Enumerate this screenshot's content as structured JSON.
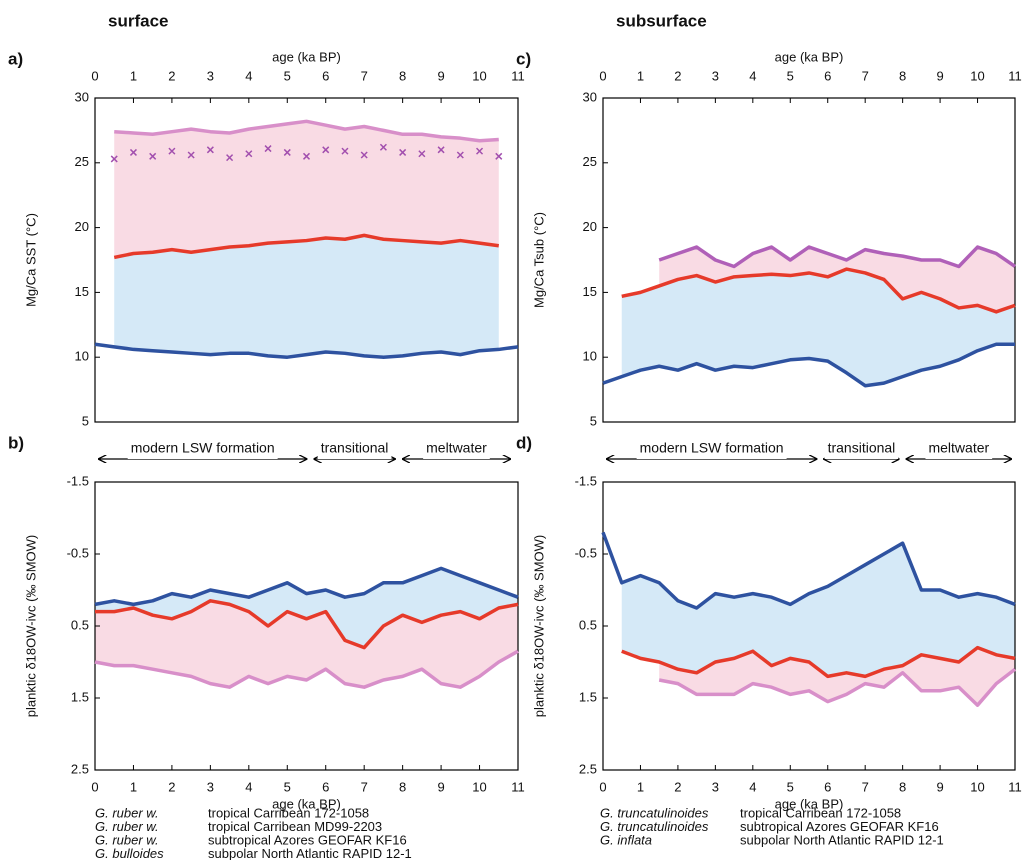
{
  "figure": {
    "headings": [
      "surface",
      "subsurface"
    ]
  },
  "chart_data": [
    {
      "type": "line",
      "panel_label": "a)",
      "xlabel": "age (ka BP)",
      "x_axis_position": "top",
      "ylabel": "Mg/Ca SST (°C)",
      "x": [
        0,
        0.5,
        1,
        1.5,
        2,
        2.5,
        3,
        3.5,
        4,
        4.5,
        5,
        5.5,
        6,
        6.5,
        7,
        7.5,
        8,
        8.5,
        9,
        9.5,
        10,
        10.5,
        11
      ],
      "xlim": [
        0,
        11
      ],
      "xticks": [
        0,
        1,
        2,
        3,
        4,
        5,
        6,
        7,
        8,
        9,
        10,
        11
      ],
      "ylim": [
        5,
        30
      ],
      "yticks": [
        5,
        10,
        15,
        20,
        25,
        30
      ],
      "series": [
        {
          "color": "#d88fc9",
          "style": "line",
          "values": [
            null,
            27.4,
            27.3,
            27.2,
            27.4,
            27.6,
            27.4,
            27.3,
            27.6,
            27.8,
            28.0,
            28.2,
            27.9,
            27.6,
            27.8,
            27.5,
            27.2,
            27.2,
            27.0,
            26.9,
            26.7,
            26.8,
            null
          ]
        },
        {
          "color": "#a24fae",
          "style": "points",
          "values": [
            null,
            25.3,
            25.8,
            25.5,
            25.9,
            25.6,
            26.0,
            25.4,
            25.7,
            26.1,
            25.8,
            25.5,
            26.0,
            25.9,
            25.6,
            26.2,
            25.8,
            25.7,
            26.0,
            25.6,
            25.9,
            25.5,
            null
          ]
        },
        {
          "color": "#e63a2a",
          "style": "line",
          "values": [
            null,
            17.7,
            18.0,
            18.1,
            18.3,
            18.1,
            18.3,
            18.5,
            18.6,
            18.8,
            18.9,
            19.0,
            19.2,
            19.1,
            19.4,
            19.1,
            19.0,
            18.9,
            18.8,
            19.0,
            18.8,
            18.6,
            null
          ]
        },
        {
          "color": "#2e52a0",
          "style": "line",
          "values": [
            11.0,
            10.8,
            10.6,
            10.5,
            10.4,
            10.3,
            10.2,
            10.3,
            10.3,
            10.1,
            10.0,
            10.2,
            10.4,
            10.3,
            10.1,
            10.0,
            10.1,
            10.3,
            10.4,
            10.2,
            10.5,
            10.6,
            10.8
          ]
        }
      ],
      "bands": [
        {
          "between": [
            0,
            2
          ],
          "color": "#f9dbe4"
        },
        {
          "between": [
            2,
            3
          ],
          "color": "#d5e9f7"
        }
      ]
    },
    {
      "type": "line",
      "panel_label": "b)",
      "xlabel": "age (ka BP)",
      "x_axis_position": "bottom",
      "ylabel": "planktic δ18OW-ivc (‰ SMOW)",
      "x": [
        0,
        0.5,
        1,
        1.5,
        2,
        2.5,
        3,
        3.5,
        4,
        4.5,
        5,
        5.5,
        6,
        6.5,
        7,
        7.5,
        8,
        8.5,
        9,
        9.5,
        10,
        10.5,
        11
      ],
      "xlim": [
        0,
        11
      ],
      "xticks": [
        0,
        1,
        2,
        3,
        4,
        5,
        6,
        7,
        8,
        9,
        10,
        11
      ],
      "ylim": [
        2.5,
        -1.5
      ],
      "yticks": [
        -1.5,
        -0.5,
        0.5,
        1.5,
        2.5
      ],
      "regimes": [
        {
          "text": "modern LSW formation",
          "x0": 0.1,
          "x1": 5.5
        },
        {
          "text": "transitional",
          "x0": 5.7,
          "x1": 7.8
        },
        {
          "text": "meltwater",
          "x0": 8.0,
          "x1": 10.8
        }
      ],
      "series": [
        {
          "color": "#d88fc9",
          "style": "line",
          "values": [
            1.0,
            1.05,
            1.05,
            1.1,
            1.15,
            1.2,
            1.3,
            1.35,
            1.2,
            1.3,
            1.2,
            1.25,
            1.1,
            1.3,
            1.35,
            1.25,
            1.2,
            1.1,
            1.3,
            1.35,
            1.2,
            1.0,
            0.85
          ]
        },
        {
          "color": "#e63a2a",
          "style": "line",
          "values": [
            0.3,
            0.3,
            0.25,
            0.35,
            0.4,
            0.3,
            0.15,
            0.2,
            0.3,
            0.5,
            0.3,
            0.4,
            0.3,
            0.7,
            0.8,
            0.5,
            0.35,
            0.45,
            0.35,
            0.3,
            0.4,
            0.25,
            0.2
          ]
        },
        {
          "color": "#2e52a0",
          "style": "line",
          "values": [
            0.2,
            0.15,
            0.2,
            0.15,
            0.05,
            0.1,
            0.0,
            0.05,
            0.1,
            0.0,
            -0.1,
            0.05,
            0.0,
            0.1,
            0.05,
            -0.1,
            -0.1,
            -0.2,
            -0.3,
            -0.2,
            -0.1,
            0.0,
            0.1
          ]
        }
      ],
      "bands": [
        {
          "between": [
            0,
            1
          ],
          "color": "#f9dbe4"
        },
        {
          "between": [
            1,
            2
          ],
          "color": "#d5e9f7"
        }
      ]
    },
    {
      "type": "line",
      "panel_label": "c)",
      "xlabel": "age (ka BP)",
      "x_axis_position": "top",
      "ylabel": "Mg/Ca Tsub (°C)",
      "x": [
        0,
        0.5,
        1,
        1.5,
        2,
        2.5,
        3,
        3.5,
        4,
        4.5,
        5,
        5.5,
        6,
        6.5,
        7,
        7.5,
        8,
        8.5,
        9,
        9.5,
        10,
        10.5,
        11
      ],
      "xlim": [
        0,
        11
      ],
      "xticks": [
        0,
        1,
        2,
        3,
        4,
        5,
        6,
        7,
        8,
        9,
        10,
        11
      ],
      "ylim": [
        5,
        30
      ],
      "yticks": [
        5,
        10,
        15,
        20,
        25,
        30
      ],
      "series": [
        {
          "color": "#b060b8",
          "style": "line",
          "values": [
            null,
            null,
            null,
            17.5,
            18.0,
            18.5,
            17.5,
            17.0,
            18.0,
            18.5,
            17.5,
            18.5,
            18.0,
            17.5,
            18.3,
            18.0,
            17.8,
            17.5,
            17.5,
            17.0,
            18.5,
            18.0,
            17.0
          ]
        },
        {
          "color": "#e63a2a",
          "style": "line",
          "values": [
            null,
            14.7,
            15.0,
            15.5,
            16.0,
            16.3,
            15.8,
            16.2,
            16.3,
            16.4,
            16.3,
            16.5,
            16.2,
            16.8,
            16.5,
            16.0,
            14.5,
            15.0,
            14.5,
            13.8,
            14.0,
            13.5,
            14.0
          ]
        },
        {
          "color": "#2e52a0",
          "style": "line",
          "values": [
            8.0,
            8.5,
            9.0,
            9.3,
            9.0,
            9.5,
            9.0,
            9.3,
            9.2,
            9.5,
            9.8,
            9.9,
            9.7,
            8.8,
            7.8,
            8.0,
            8.5,
            9.0,
            9.3,
            9.8,
            10.5,
            11.0,
            11.0
          ]
        }
      ],
      "bands": [
        {
          "between": [
            0,
            1
          ],
          "color": "#f9dbe4"
        },
        {
          "between": [
            1,
            2
          ],
          "color": "#d5e9f7"
        }
      ]
    },
    {
      "type": "line",
      "panel_label": "d)",
      "xlabel": "age (ka BP)",
      "x_axis_position": "bottom",
      "ylabel": "planktic δ18OW-ivc (‰ SMOW)",
      "x": [
        0,
        0.5,
        1,
        1.5,
        2,
        2.5,
        3,
        3.5,
        4,
        4.5,
        5,
        5.5,
        6,
        6.5,
        7,
        7.5,
        8,
        8.5,
        9,
        9.5,
        10,
        10.5,
        11
      ],
      "xlim": [
        0,
        11
      ],
      "xticks": [
        0,
        1,
        2,
        3,
        4,
        5,
        6,
        7,
        8,
        9,
        10,
        11
      ],
      "ylim": [
        2.5,
        -1.5
      ],
      "yticks": [
        -1.5,
        -0.5,
        0.5,
        1.5,
        2.5
      ],
      "regimes": [
        {
          "text": "modern LSW formation",
          "x0": 0.1,
          "x1": 5.7
        },
        {
          "text": "transitional",
          "x0": 5.9,
          "x1": 7.9
        },
        {
          "text": "meltwater",
          "x0": 8.1,
          "x1": 10.9
        }
      ],
      "series": [
        {
          "color": "#d88fc9",
          "style": "line",
          "values": [
            null,
            null,
            null,
            1.25,
            1.3,
            1.45,
            1.45,
            1.45,
            1.3,
            1.35,
            1.45,
            1.4,
            1.55,
            1.45,
            1.3,
            1.35,
            1.15,
            1.4,
            1.4,
            1.35,
            1.6,
            1.3,
            1.1
          ]
        },
        {
          "color": "#e63a2a",
          "style": "line",
          "values": [
            null,
            0.85,
            0.95,
            1.0,
            1.1,
            1.15,
            1.0,
            0.95,
            0.85,
            1.05,
            0.95,
            1.0,
            1.2,
            1.15,
            1.2,
            1.1,
            1.05,
            0.9,
            0.95,
            1.0,
            0.8,
            0.9,
            0.95
          ]
        },
        {
          "color": "#2e52a0",
          "style": "line",
          "values": [
            -0.8,
            -0.1,
            -0.2,
            -0.1,
            0.15,
            0.25,
            0.05,
            0.1,
            0.05,
            0.1,
            0.2,
            0.05,
            -0.05,
            -0.2,
            -0.35,
            -0.5,
            -0.65,
            0.0,
            0.0,
            0.1,
            0.05,
            0.1,
            0.2
          ]
        }
      ],
      "bands": [
        {
          "between": [
            0,
            1
          ],
          "color": "#f9dbe4"
        },
        {
          "between": [
            1,
            2
          ],
          "color": "#d5e9f7"
        }
      ]
    }
  ],
  "legends": [
    {
      "rows": [
        {
          "species": "G. ruber w.",
          "label": "tropical Carribean 172-1058",
          "color": "#d88fc9"
        },
        {
          "species": "G. ruber w.",
          "label": "tropical Carribean MD99-2203",
          "color": "#a24fae"
        },
        {
          "species": "G. ruber w.",
          "label": "subtropical Azores GEOFAR KF16",
          "color": "#e63a2a"
        },
        {
          "species": "G. bulloides",
          "label": "subpolar North Atlantic RAPID 12-1",
          "color": "#2e52a0"
        }
      ]
    },
    {
      "rows": [
        {
          "species": "G. truncatulinoides",
          "label": "tropical Carribean 172-1058",
          "color": "#d88fc9"
        },
        {
          "species": "G. truncatulinoides",
          "label": "subtropical Azores GEOFAR KF16",
          "color": "#e63a2a"
        },
        {
          "species": "G. inflata",
          "label": "subpolar North Atlantic RAPID 12-1",
          "color": "#2e52a0"
        }
      ]
    }
  ]
}
